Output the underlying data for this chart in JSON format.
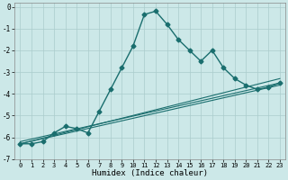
{
  "xlabel": "Humidex (Indice chaleur)",
  "bg_color": "#cce8e8",
  "grid_color": "#aacccc",
  "line_color": "#1a6e6e",
  "xlim": [
    -0.5,
    23.5
  ],
  "ylim": [
    -7,
    0.2
  ],
  "xticks": [
    0,
    1,
    2,
    3,
    4,
    5,
    6,
    7,
    8,
    9,
    10,
    11,
    12,
    13,
    14,
    15,
    16,
    17,
    18,
    19,
    20,
    21,
    22,
    23
  ],
  "yticks": [
    0,
    -1,
    -2,
    -3,
    -4,
    -5,
    -6,
    -7
  ],
  "main_series": {
    "x": [
      0,
      1,
      2,
      3,
      4,
      5,
      6,
      7,
      8,
      9,
      10,
      11,
      12,
      13,
      14,
      15,
      16,
      17,
      18,
      19,
      20,
      21,
      22,
      23
    ],
    "y": [
      -6.3,
      -6.3,
      -6.2,
      -5.8,
      -5.5,
      -5.6,
      -5.8,
      -4.8,
      -3.8,
      -2.8,
      -1.8,
      -0.35,
      -0.2,
      -0.8,
      -1.5,
      -2.0,
      -2.5,
      -2.0,
      -2.8,
      -3.3,
      -3.6,
      -3.8,
      -3.7,
      -3.5
    ]
  },
  "linear_series": [
    {
      "x": [
        0,
        23
      ],
      "y": [
        -6.3,
        -3.3
      ]
    },
    {
      "x": [
        0,
        23
      ],
      "y": [
        -6.3,
        -3.6
      ]
    },
    {
      "x": [
        0,
        23
      ],
      "y": [
        -6.2,
        -3.5
      ]
    }
  ]
}
